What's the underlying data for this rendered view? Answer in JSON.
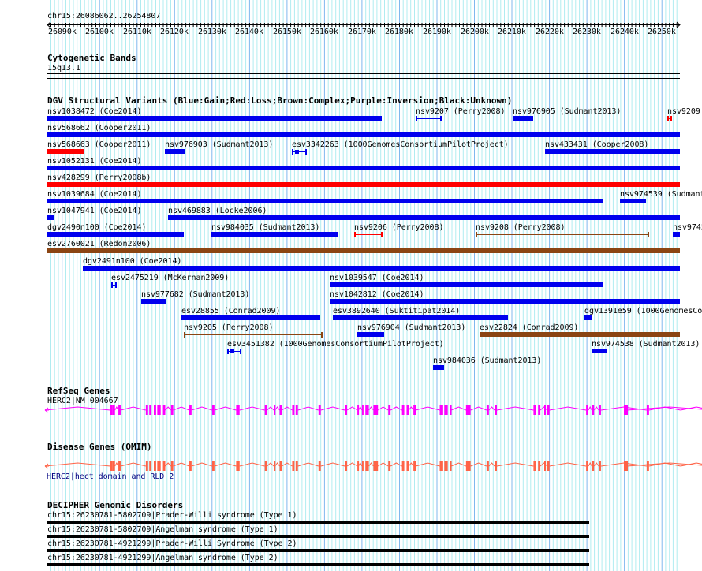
{
  "ruler": {
    "position": "chr15:26086062..26254807",
    "ticks": [
      "26090k",
      "26100k",
      "26110k",
      "26120k",
      "26130k",
      "26140k",
      "26150k",
      "26160k",
      "26170k",
      "26180k",
      "26190k",
      "26200k",
      "26210k",
      "26220k",
      "26230k",
      "26240k",
      "26250k"
    ]
  },
  "cytoband": {
    "title": "Cytogenetic Bands",
    "band": "15q13.1"
  },
  "dgv": {
    "title": "DGV Structural Variants (Blue:Gain;Red:Loss;Brown:Complex;Purple:Inversion;Black:Unknown)",
    "features": [
      {
        "label": "nsv1038472 (Coe2014)",
        "type": "gain"
      },
      {
        "label": "nsv9207 (Perry2008)",
        "type": "gain"
      },
      {
        "label": "nsv976905 (Sudmant2013)",
        "type": "gain"
      },
      {
        "label": "nsv9209",
        "type": "loss"
      },
      {
        "label": "nsv568662 (Cooper2011)",
        "type": "gain"
      },
      {
        "label": "nsv568663 (Cooper2011)",
        "type": "loss"
      },
      {
        "label": "nsv976903 (Sudmant2013)",
        "type": "gain"
      },
      {
        "label": "esv3342263 (1000GenomesConsortiumPilotProject)",
        "type": "gain"
      },
      {
        "label": "nsv433431 (Cooper2008)",
        "type": "gain"
      },
      {
        "label": "nsv1052131 (Coe2014)",
        "type": "gain"
      },
      {
        "label": "nsv428299 (Perry2008b)",
        "type": "loss"
      },
      {
        "label": "nsv1039684 (Coe2014)",
        "type": "gain"
      },
      {
        "label": "nsv974539 (Sudmant",
        "type": "gain"
      },
      {
        "label": "nsv1047941 (Coe2014)",
        "type": "gain"
      },
      {
        "label": "nsv469883 (Locke2006)",
        "type": "gain"
      },
      {
        "label": "dgv2490n100 (Coe2014)",
        "type": "gain"
      },
      {
        "label": "nsv984035 (Sudmant2013)",
        "type": "gain"
      },
      {
        "label": "nsv9206 (Perry2008)",
        "type": "loss"
      },
      {
        "label": "nsv9208 (Perry2008)",
        "type": "complex"
      },
      {
        "label": "nsv9745",
        "type": "gain"
      },
      {
        "label": "esv2760021 (Redon2006)",
        "type": "complex"
      },
      {
        "label": "dgv2491n100 (Coe2014)",
        "type": "gain"
      },
      {
        "label": "esv2475219 (McKernan2009)",
        "type": "gain"
      },
      {
        "label": "nsv1039547 (Coe2014)",
        "type": "gain"
      },
      {
        "label": "nsv977682 (Sudmant2013)",
        "type": "gain"
      },
      {
        "label": "nsv1042812 (Coe2014)",
        "type": "gain"
      },
      {
        "label": "esv28855 (Conrad2009)",
        "type": "gain"
      },
      {
        "label": "esv3892640 (Suktitipat2014)",
        "type": "gain"
      },
      {
        "label": "dgv1391e59 (1000GenomesCo",
        "type": "gain"
      },
      {
        "label": "nsv9205 (Perry2008)",
        "type": "complex"
      },
      {
        "label": "nsv976904 (Sudmant2013)",
        "type": "gain"
      },
      {
        "label": "esv22824 (Conrad2009)",
        "type": "complex"
      },
      {
        "label": "esv3451382 (1000GenomesConsortiumPilotProject)",
        "type": "gain"
      },
      {
        "label": "nsv974538 (Sudmant2013)",
        "type": "gain"
      },
      {
        "label": "nsv984036 (Sudmant2013)",
        "type": "gain"
      }
    ]
  },
  "refseq": {
    "title": "RefSeq Genes",
    "gene": "HERC2|NM_004667"
  },
  "omim": {
    "title": "Disease Genes (OMIM)",
    "gene": "HERC2|hect domain and RLD 2"
  },
  "decipher": {
    "title": "DECIPHER Genomic Disorders",
    "items": [
      "chr15:26230781-5802709|Prader-Willi syndrome (Type 1)",
      "chr15:26230781-5802709|Angelman syndrome (Type 1)",
      "chr15:26230781-4921299|Prader-Willi Syndrome (Type 2)",
      "chr15:26230781-4921299|Angelman syndrome (Type 2)"
    ]
  },
  "colors": {
    "gain": "#0000ee",
    "loss": "#ff0000",
    "complex": "#8b4513",
    "refseq": "#ff00ff",
    "omim": "#ff6347",
    "grid_minor": "#b0ecf0",
    "grid_major": "#80b8ee",
    "omim_label": "#000080"
  }
}
